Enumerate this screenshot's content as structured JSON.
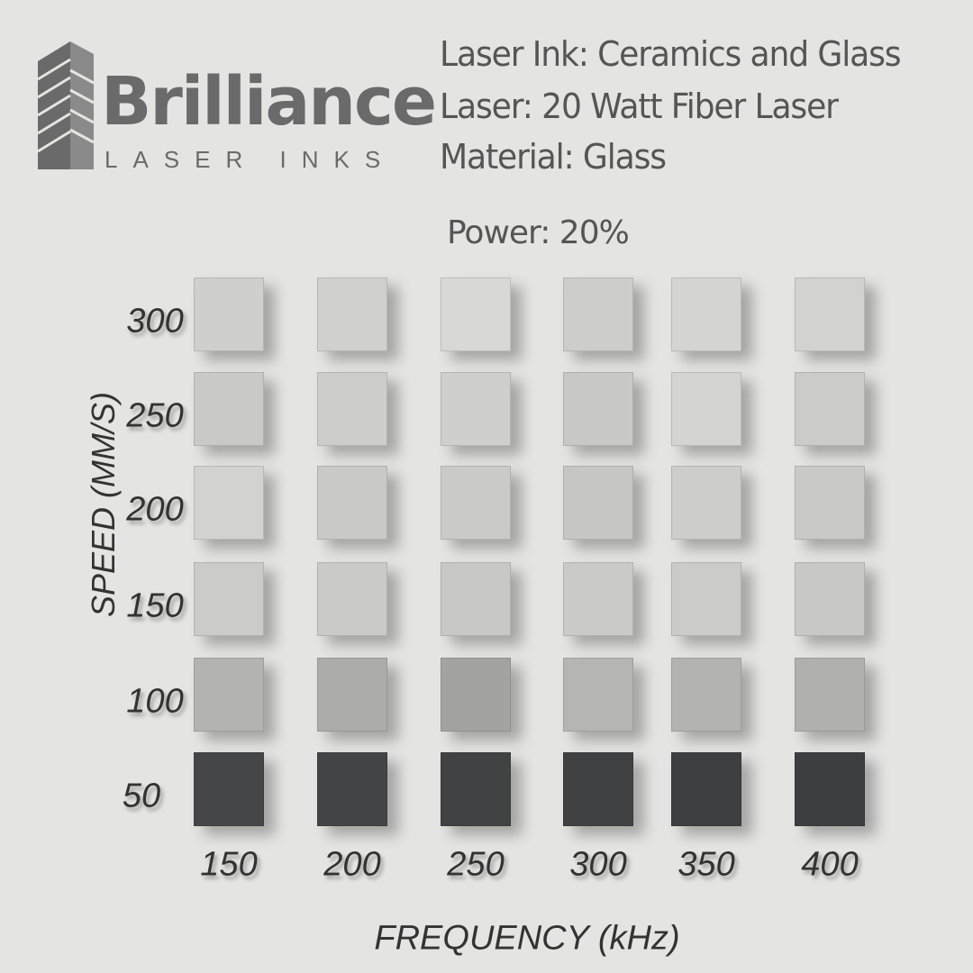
{
  "logo": {
    "brand": "Brilliance",
    "tagline": "LASER INKS",
    "color": "#6a6a6a"
  },
  "info": {
    "line1": "Laser Ink: Ceramics and Glass",
    "line2": "Laser: 20 Watt Fiber Laser",
    "line3": "Material: Glass",
    "power": "Power: 20%"
  },
  "chart_data": {
    "type": "heatmap",
    "xlabel": "FREQUENCY (kHz)",
    "ylabel": "SPEED (MM/S)",
    "x": [
      "150",
      "200",
      "250",
      "300",
      "350",
      "400"
    ],
    "y": [
      "300",
      "250",
      "200",
      "150",
      "100",
      "50"
    ],
    "cell_colors": [
      [
        "#cfcfcd",
        "#d0d0ce",
        "#d8d8d6",
        "#cdcdcb",
        "#d4d4d2",
        "#d2d2d0"
      ],
      [
        "#c9c9c7",
        "#cdcdcb",
        "#cfcfcd",
        "#c8c8c6",
        "#d4d4d2",
        "#cbcbc9"
      ],
      [
        "#d2d2d0",
        "#c9c9c7",
        "#cacac8",
        "#c6c6c4",
        "#cdcdcb",
        "#c9c9c7"
      ],
      [
        "#cbcbc9",
        "#cacac8",
        "#c8c8c6",
        "#cacac8",
        "#cbcbc9",
        "#c8c8c6"
      ],
      [
        "#b3b3b1",
        "#acacaa",
        "#a3a3a1",
        "#b5b5b3",
        "#b3b3b1",
        "#b0b0ae"
      ],
      [
        "#454648",
        "#434446",
        "#414244",
        "#404143",
        "#3e3f41",
        "#3d3e40"
      ]
    ]
  }
}
